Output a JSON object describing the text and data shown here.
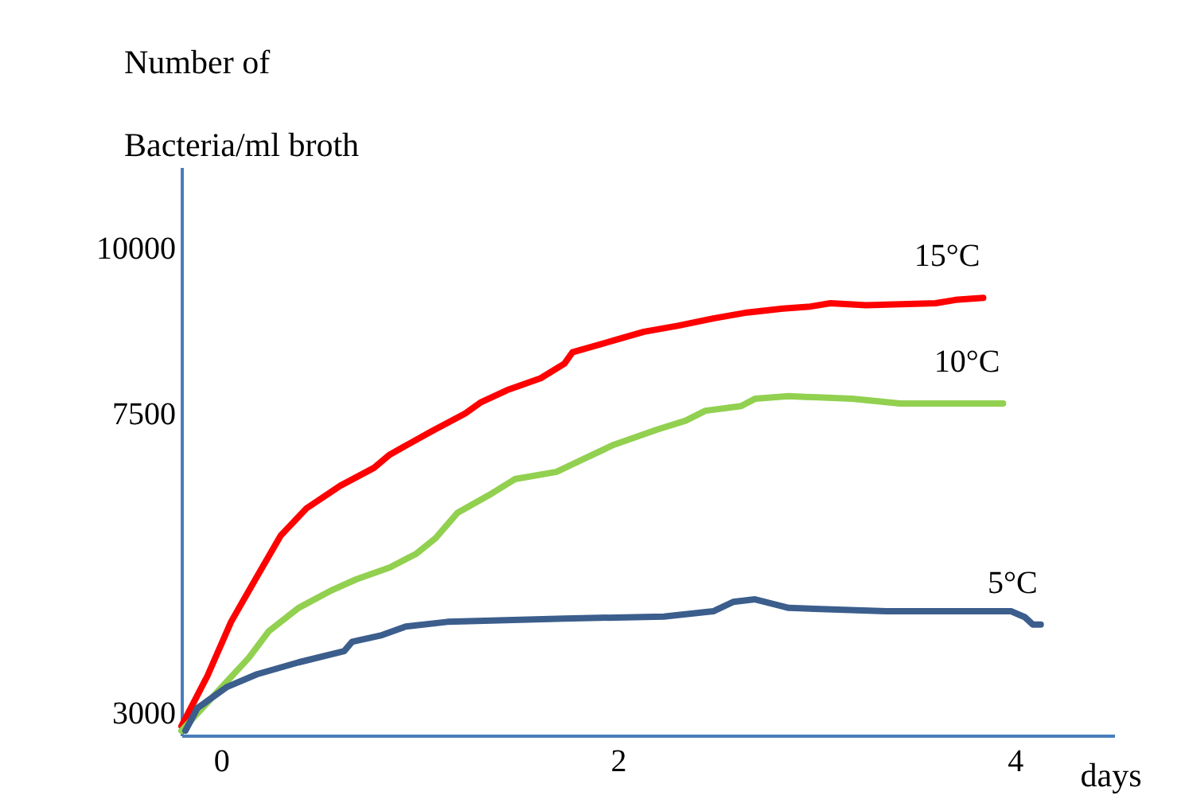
{
  "chart_data": {
    "type": "line",
    "ylabel": "Number of\nBacteria/ml broth",
    "xlabel": "days",
    "xlim": [
      -0.2,
      4.5
    ],
    "ylim": [
      2660,
      11220
    ],
    "xticks": [
      0,
      2,
      4
    ],
    "yticks": [
      3000,
      7500,
      10000
    ],
    "grid": false,
    "line_style": "solid",
    "marker": "none",
    "series": [
      {
        "name": "15°C",
        "color": "#ff0000",
        "x": [
          -0.2,
          -0.07,
          0.05,
          0.18,
          0.3,
          0.43,
          0.6,
          0.77,
          0.85,
          1.06,
          1.23,
          1.31,
          1.44,
          1.61,
          1.73,
          1.77,
          1.98,
          2.13,
          2.3,
          2.48,
          2.65,
          2.83,
          2.97,
          3.07,
          3.25,
          3.6,
          3.7,
          3.84
        ],
        "values": [
          2800,
          3550,
          4370,
          5050,
          5670,
          6080,
          6420,
          6690,
          6890,
          7240,
          7510,
          7680,
          7860,
          8040,
          8260,
          8430,
          8610,
          8740,
          8830,
          8940,
          9030,
          9090,
          9120,
          9170,
          9140,
          9170,
          9220,
          9250
        ]
      },
      {
        "name": "10°C",
        "color": "#92d050",
        "x": [
          -0.2,
          -0.03,
          0.14,
          0.24,
          0.39,
          0.56,
          0.68,
          0.85,
          0.98,
          1.08,
          1.19,
          1.35,
          1.48,
          1.69,
          1.81,
          1.98,
          2.2,
          2.34,
          2.44,
          2.62,
          2.69,
          2.86,
          3.18,
          3.42,
          3.94
        ],
        "values": [
          2730,
          3280,
          3830,
          4230,
          4580,
          4850,
          5010,
          5190,
          5390,
          5630,
          6010,
          6280,
          6520,
          6630,
          6800,
          7040,
          7270,
          7400,
          7550,
          7620,
          7730,
          7770,
          7730,
          7660,
          7660
        ]
      },
      {
        "name": "5°C",
        "color": "#3b5e8c",
        "x": [
          -0.18,
          -0.12,
          0.03,
          0.18,
          0.39,
          0.62,
          0.66,
          0.81,
          0.93,
          1.14,
          1.73,
          2.23,
          2.48,
          2.58,
          2.69,
          2.86,
          3.35,
          3.98,
          4.05,
          4.09,
          4.13
        ],
        "values": [
          2730,
          3070,
          3390,
          3580,
          3760,
          3930,
          4070,
          4170,
          4300,
          4370,
          4420,
          4450,
          4530,
          4670,
          4710,
          4580,
          4530,
          4530,
          4440,
          4330,
          4330
        ]
      }
    ]
  }
}
